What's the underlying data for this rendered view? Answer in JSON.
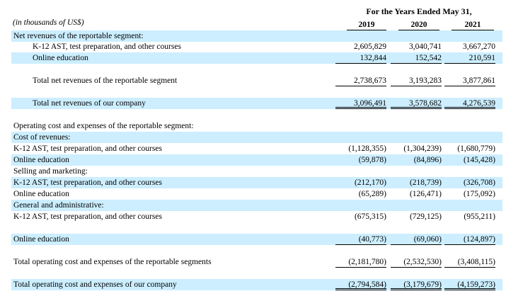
{
  "header": {
    "period": "For the Years Ended May 31,",
    "units": "(in thousands of US$)",
    "years": [
      "2019",
      "2020",
      "2021"
    ]
  },
  "rows": [
    {
      "label": "Net revenues of the reportable segment:",
      "values": []
    },
    {
      "label": "K-12 AST, test preparation, and other courses",
      "values": [
        "2,605,829",
        "3,040,741",
        "3,667,270"
      ]
    },
    {
      "label": "Online education",
      "values": [
        "132,844",
        "152,542",
        "210,591"
      ]
    },
    {
      "label": "Total net revenues of the reportable segment",
      "values": [
        "2,738,673",
        "3,193,283",
        "3,877,861"
      ]
    },
    {
      "label": "Total net revenues of our company",
      "values": [
        "3,096,491",
        "3,578,682",
        "4,276,539"
      ]
    },
    {
      "label": "Operating cost and expenses of the reportable segment:",
      "values": []
    },
    {
      "label": "Cost of revenues:",
      "values": []
    },
    {
      "label": "K-12 AST, test preparation, and other courses",
      "values": [
        "(1,128,355)",
        "(1,304,239)",
        "(1,680,779)"
      ]
    },
    {
      "label": "Online education",
      "values": [
        "(59,878)",
        "(84,896)",
        "(145,428)"
      ]
    },
    {
      "label": "Selling and marketing:",
      "values": []
    },
    {
      "label": "K-12 AST, test preparation, and other courses",
      "values": [
        "(212,170)",
        "(218,739)",
        "(326,708)"
      ]
    },
    {
      "label": "Online education",
      "values": [
        "(65,289)",
        "(126,471)",
        "(175,092)"
      ]
    },
    {
      "label": "General and administrative:",
      "values": []
    },
    {
      "label": "K-12 AST, test preparation, and other courses",
      "values": [
        "(675,315)",
        "(729,125)",
        "(955,211)"
      ]
    },
    {
      "label": "Online education",
      "values": [
        "(40,773)",
        "(69,060)",
        "(124,897)"
      ]
    },
    {
      "label": "Total operating cost and expenses of the reportable segments",
      "values": [
        "(2,181,780)",
        "(2,532,530)",
        "(3,408,115)"
      ]
    },
    {
      "label": "Total operating cost and expenses of our company",
      "values": [
        "(2,794,584)",
        "(3,179,679)",
        "(4,159,273)"
      ]
    }
  ],
  "colors": {
    "row_shade": "#cceeff",
    "text": "#000000"
  }
}
